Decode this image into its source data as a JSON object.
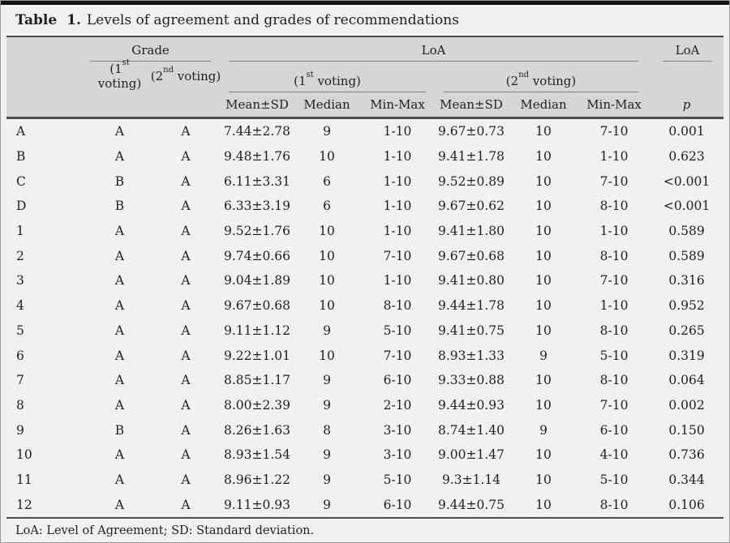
{
  "title": {
    "label": "Table 1.",
    "text": "Levels of agreement and grades of recommendations"
  },
  "header": {
    "grade": "Grade",
    "loa": "LoA",
    "voting1": {
      "base": "(1",
      "sup": "st",
      "tail": " voting)"
    },
    "voting2": {
      "base": "(2",
      "sup": "nd",
      "tail": " voting)"
    },
    "mean_sd": "Mean±SD",
    "median": "Median",
    "min_max": "Min-Max",
    "p": "p"
  },
  "colors": {
    "header_band": "#d6d6d4",
    "page_bg": "#f1f1ef",
    "rule_dark": "#4c4c4c",
    "rule_light": "#7d7d7d",
    "top_bar": "#121212"
  },
  "table": {
    "rows": [
      {
        "cells": [
          "A",
          "A",
          "A",
          "7.44±2.78",
          "9",
          "1-10",
          "9.67±0.73",
          "10",
          "7-10",
          "0.001"
        ]
      },
      {
        "cells": [
          "B",
          "A",
          "A",
          "9.48±1.76",
          "10",
          "1-10",
          "9.41±1.78",
          "10",
          "1-10",
          "0.623"
        ]
      },
      {
        "cells": [
          "C",
          "B",
          "A",
          "6.11±3.31",
          "6",
          "1-10",
          "9.52±0.89",
          "10",
          "7-10",
          "<0.001"
        ]
      },
      {
        "cells": [
          "D",
          "B",
          "A",
          "6.33±3.19",
          "6",
          "1-10",
          "9.67±0.62",
          "10",
          "8-10",
          "<0.001"
        ]
      },
      {
        "cells": [
          "1",
          "A",
          "A",
          "9.52±1.76",
          "10",
          "1-10",
          "9.41±1.80",
          "10",
          "1-10",
          "0.589"
        ]
      },
      {
        "cells": [
          "2",
          "A",
          "A",
          "9.74±0.66",
          "10",
          "7-10",
          "9.67±0.68",
          "10",
          "8-10",
          "0.589"
        ]
      },
      {
        "cells": [
          "3",
          "A",
          "A",
          "9.04±1.89",
          "10",
          "1-10",
          "9.41±0.80",
          "10",
          "7-10",
          "0.316"
        ]
      },
      {
        "cells": [
          "4",
          "A",
          "A",
          "9.67±0.68",
          "10",
          "8-10",
          "9.44±1.78",
          "10",
          "1-10",
          "0.952"
        ]
      },
      {
        "cells": [
          "5",
          "A",
          "A",
          "9.11±1.12",
          "9",
          "5-10",
          "9.41±0.75",
          "10",
          "8-10",
          "0.265"
        ]
      },
      {
        "cells": [
          "6",
          "A",
          "A",
          "9.22±1.01",
          "10",
          "7-10",
          "8.93±1.33",
          "9",
          "5-10",
          "0.319"
        ]
      },
      {
        "cells": [
          "7",
          "A",
          "A",
          "8.85±1.17",
          "9",
          "6-10",
          "9.33±0.88",
          "10",
          "8-10",
          "0.064"
        ]
      },
      {
        "cells": [
          "8",
          "A",
          "A",
          "8.00±2.39",
          "9",
          "2-10",
          "9.44±0.93",
          "10",
          "7-10",
          "0.002"
        ]
      },
      {
        "cells": [
          "9",
          "B",
          "A",
          "8.26±1.63",
          "8",
          "3-10",
          "8.74±1.40",
          "9",
          "6-10",
          "0.150"
        ]
      },
      {
        "cells": [
          "10",
          "A",
          "A",
          "8.93±1.54",
          "9",
          "3-10",
          "9.00±1.47",
          "10",
          "4-10",
          "0.736"
        ]
      },
      {
        "cells": [
          "11",
          "A",
          "A",
          "8.96±1.22",
          "9",
          "5-10",
          "9.3±1.14",
          "10",
          "5-10",
          "0.344"
        ]
      },
      {
        "cells": [
          "12",
          "A",
          "A",
          "9.11±0.93",
          "9",
          "6-10",
          "9.44±0.75",
          "10",
          "8-10",
          "0.106"
        ]
      }
    ]
  },
  "footnote": "LoA: Level of Agreement; SD: Standard deviation."
}
